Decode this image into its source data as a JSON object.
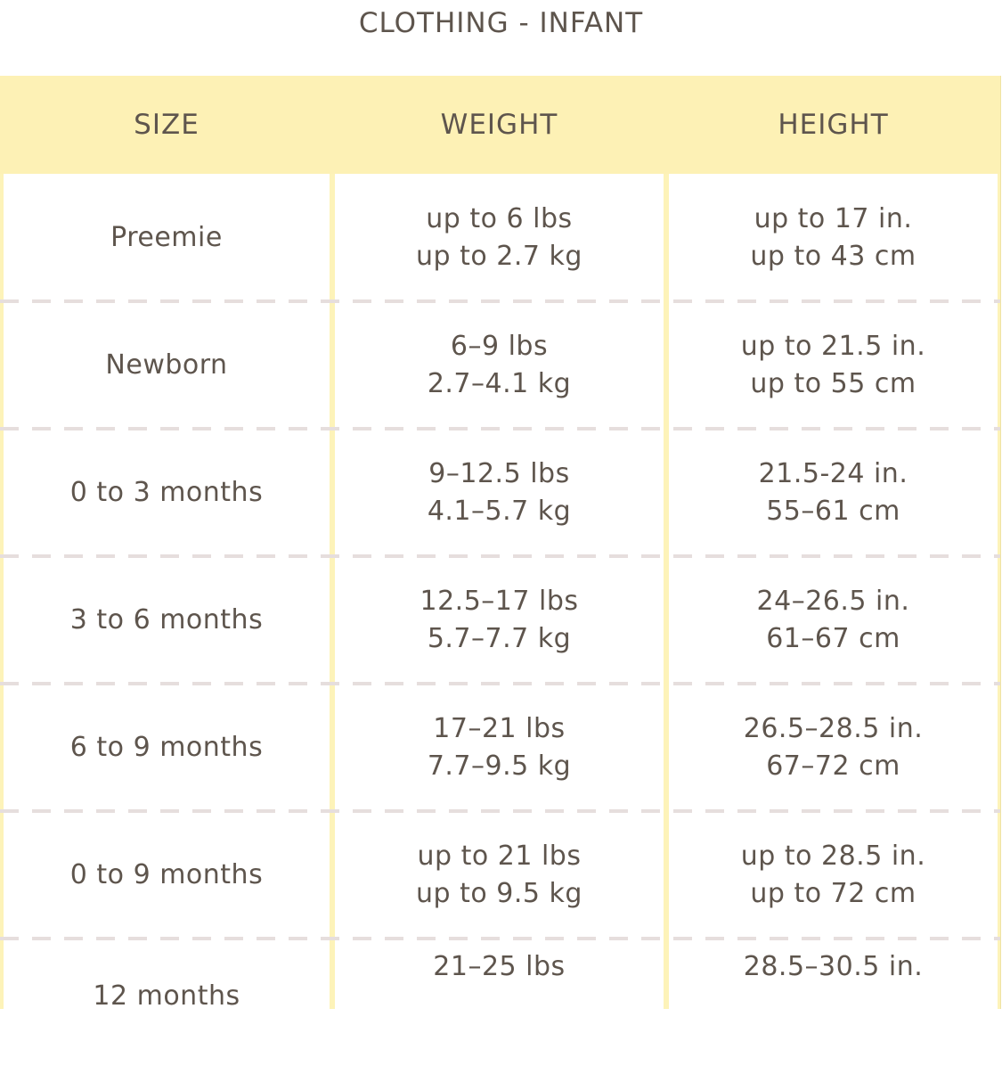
{
  "title": "CLOTHING - INFANT",
  "headers": {
    "size": "SIZE",
    "weight": "WEIGHT",
    "height": "HEIGHT"
  },
  "rows": [
    {
      "size": "Preemie",
      "weight_lbs": "up to 6 lbs",
      "weight_kg": "up to 2.7 kg",
      "height_in": "up to 17 in.",
      "height_cm": "up to 43 cm"
    },
    {
      "size": "Newborn",
      "weight_lbs": "6–9 lbs",
      "weight_kg": "2.7–4.1 kg",
      "height_in": "up to 21.5 in.",
      "height_cm": "up to 55 cm"
    },
    {
      "size": "0 to 3 months",
      "weight_lbs": "9–12.5 lbs",
      "weight_kg": "4.1–5.7 kg",
      "height_in": "21.5-24 in.",
      "height_cm": "55–61 cm"
    },
    {
      "size": "3 to 6 months",
      "weight_lbs": "12.5–17 lbs",
      "weight_kg": "5.7–7.7 kg",
      "height_in": "24–26.5 in.",
      "height_cm": "61–67 cm"
    },
    {
      "size": "6 to 9 months",
      "weight_lbs": "17–21 lbs",
      "weight_kg": "7.7–9.5 kg",
      "height_in": "26.5–28.5 in.",
      "height_cm": "67–72 cm"
    },
    {
      "size": "0 to 9 months",
      "weight_lbs": "up to 21 lbs",
      "weight_kg": "up to 9.5 kg",
      "height_in": "up to 28.5 in.",
      "height_cm": "up to 72 cm"
    },
    {
      "size": "12 months",
      "weight_lbs": "21–25 lbs",
      "height_in": "28.5–30.5 in."
    }
  ],
  "colors": {
    "header_bg": "#fdf1b5",
    "border": "#fdf3b9",
    "text": "#5e554d",
    "divider": "#e6dedd"
  }
}
